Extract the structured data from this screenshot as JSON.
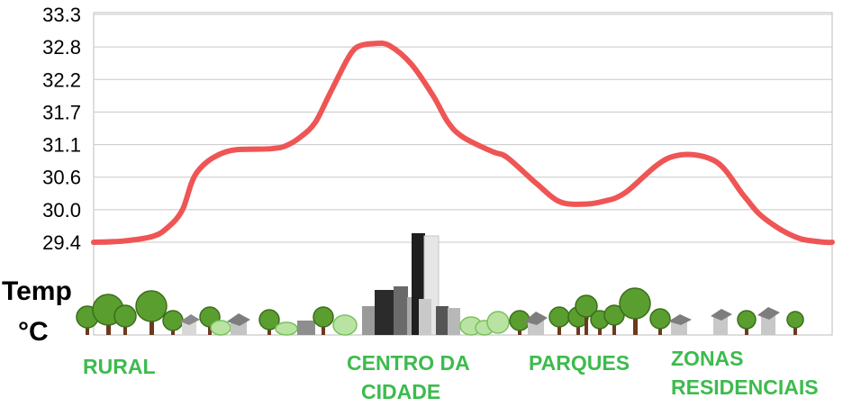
{
  "chart_data": {
    "type": "line",
    "y_ticks": [
      "33.3",
      "32.8",
      "32.2",
      "31.7",
      "31.1",
      "30.6",
      "30.0",
      "29.4"
    ],
    "ylim": [
      29.4,
      33.3
    ],
    "grid": true,
    "unit_label_1": "Temp",
    "unit_label_2": "°C",
    "x": [
      0,
      4,
      8,
      10,
      12,
      14,
      18,
      24,
      26,
      28,
      30,
      32,
      34,
      35,
      36,
      38,
      40,
      43,
      46,
      48,
      50,
      54,
      56,
      60,
      63,
      66,
      69,
      72,
      78,
      84,
      88,
      90,
      92,
      94,
      96,
      99,
      100
    ],
    "series": [
      {
        "values": [
          29.4,
          29.42,
          29.5,
          29.65,
          29.95,
          30.6,
          30.95,
          31.0,
          31.05,
          31.2,
          31.45,
          31.95,
          32.45,
          32.66,
          32.76,
          32.8,
          32.77,
          32.45,
          31.9,
          31.45,
          31.2,
          30.95,
          30.85,
          30.4,
          30.1,
          30.05,
          30.1,
          30.25,
          30.85,
          30.8,
          30.2,
          29.9,
          29.7,
          29.55,
          29.45,
          29.4,
          29.4
        ]
      }
    ],
    "colors": {
      "line": "#ef5555",
      "grid": "#c8c8c8",
      "labels": "#3dbb4e"
    },
    "zones": [
      {
        "lines": [
          "RURAL"
        ]
      },
      {
        "lines": [
          "CENTRO DA",
          "CIDADE"
        ]
      },
      {
        "lines": [
          "PARQUES"
        ]
      },
      {
        "lines": [
          "ZONAS",
          "RESIDENCIAIS"
        ]
      }
    ]
  }
}
